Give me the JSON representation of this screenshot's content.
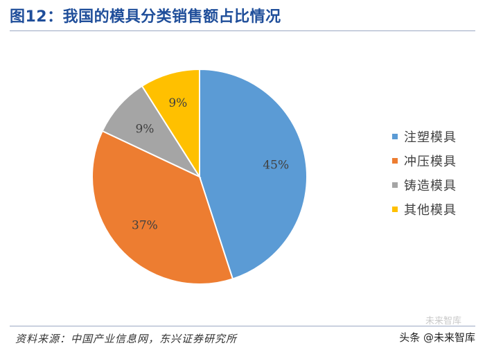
{
  "header": {
    "title": "图12：我国的模具分类销售额占比情况"
  },
  "chart_data": {
    "type": "pie",
    "title": "图12：我国的模具分类销售额占比情况",
    "categories": [
      "注塑模具",
      "冲压模具",
      "铸造模具",
      "其他模具"
    ],
    "values": [
      45,
      37,
      9,
      9
    ],
    "labels": [
      "45%",
      "37%",
      "9%",
      "9%"
    ],
    "colors": [
      "#5B9BD5",
      "#ED7D31",
      "#A5A5A5",
      "#FFC000"
    ],
    "legend_position": "right",
    "start": "12 o'clock, clockwise"
  },
  "footer": {
    "source": "资料来源：中国产业信息网，东兴证券研究所",
    "watermark": "头条 @未来智库",
    "watermark_faint": "未来智库"
  }
}
